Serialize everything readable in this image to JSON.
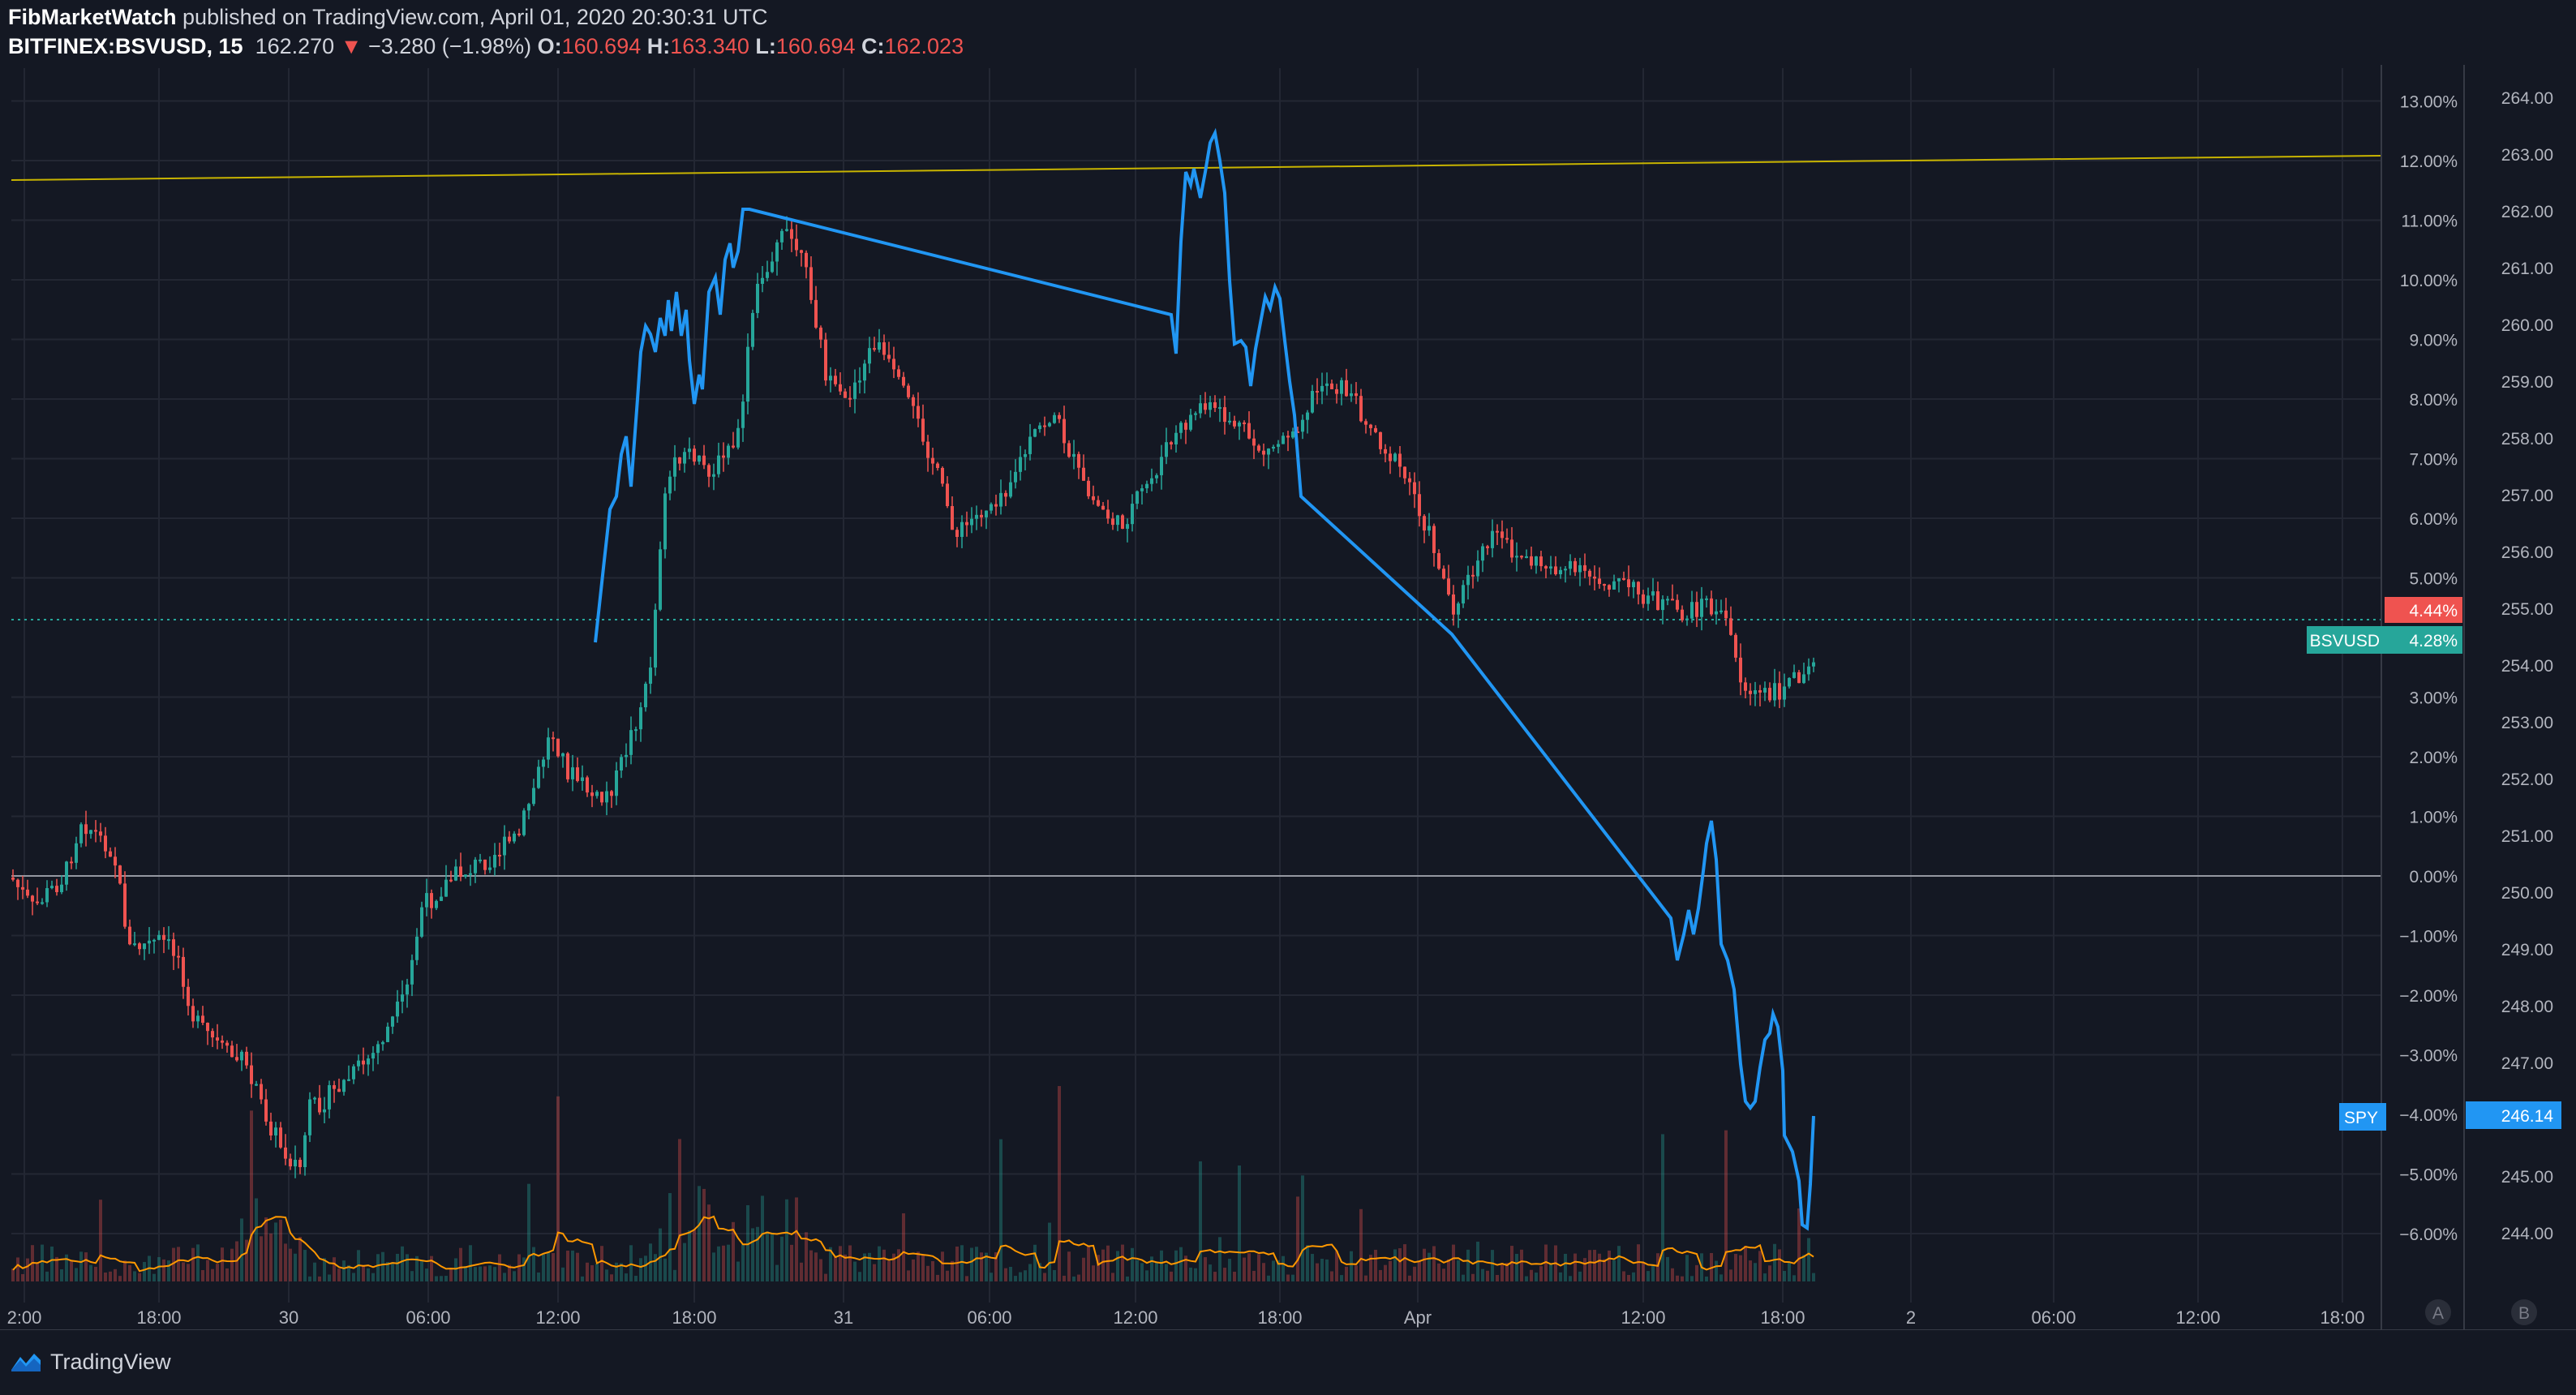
{
  "header": {
    "author": "FibMarketWatch",
    "published_text": " published on TradingView.com, April 01, 2020 20:30:31 UTC",
    "symbol": "BITFINEX:BSVUSD, 15",
    "price": "162.270",
    "change_arrow": "▼",
    "change": "−3.280 (−1.98%)",
    "o_label": "O:",
    "o": "160.694",
    "h_label": "H:",
    "h": "163.340",
    "l_label": "L:",
    "l": "160.694",
    "c_label": "C:",
    "c": "162.023"
  },
  "pct_axis": [
    "13.00%",
    "12.00%",
    "11.00%",
    "10.00%",
    "9.00%",
    "8.00%",
    "7.00%",
    "6.00%",
    "5.00%",
    "3.00%",
    "2.00%",
    "1.00%",
    "0.00%",
    "−1.00%",
    "−2.00%",
    "−3.00%",
    "−5.00%",
    "−6.00%"
  ],
  "price_axis": [
    "264.00",
    "263.00",
    "262.00",
    "261.00",
    "260.00",
    "259.00",
    "258.00",
    "257.00",
    "256.00",
    "255.00",
    "254.00",
    "253.00",
    "252.00",
    "251.00",
    "250.00",
    "249.00",
    "248.00",
    "247.00",
    "245.00",
    "244.00"
  ],
  "x_axis": [
    "2:00",
    "18:00",
    "30",
    "06:00",
    "12:00",
    "18:00",
    "31",
    "06:00",
    "12:00",
    "18:00",
    "Apr",
    "12:00",
    "18:00",
    "2",
    "06:00",
    "12:00",
    "18:00"
  ],
  "tags": {
    "red_pct": "4.44%",
    "bsv_name": "BSVUSD",
    "bsv_pct": "4.28%",
    "spy_name": "SPY",
    "spy_pct": "−4.00%",
    "spy_price": "246.14"
  },
  "scale_buttons": [
    "A",
    "B"
  ],
  "footer": {
    "brand": "TradingView"
  },
  "colors": {
    "background": "#141823",
    "up": "#26a69a",
    "down": "#ef5350",
    "spy_line": "#2196f3",
    "volume_ma": "#ff9800",
    "trendline": "#c8b400"
  }
}
